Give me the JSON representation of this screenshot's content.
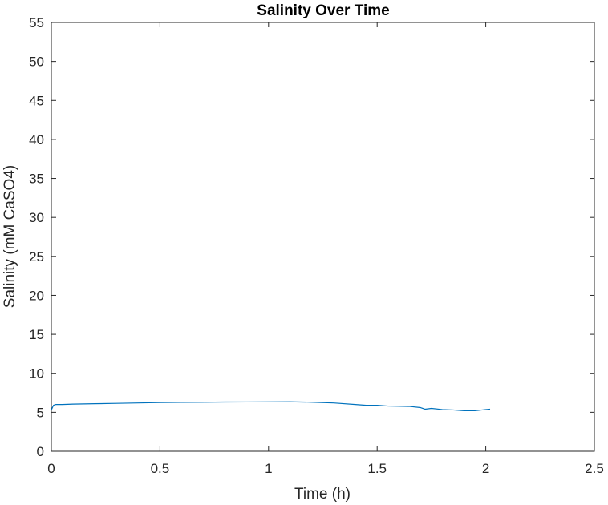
{
  "chart_data": {
    "type": "line",
    "title": "Salinity Over Time",
    "xlabel": "Time (h)",
    "ylabel": "Salinity (mM CaSO4)",
    "xlim": [
      0,
      2.5
    ],
    "ylim": [
      0,
      55
    ],
    "xticks": [
      0,
      0.5,
      1,
      1.5,
      2,
      2.5
    ],
    "xtick_labels": [
      "0",
      "0.5",
      "1",
      "1.5",
      "2",
      "2.5"
    ],
    "yticks": [
      0,
      5,
      10,
      15,
      20,
      25,
      30,
      35,
      40,
      45,
      50,
      55
    ],
    "ytick_labels": [
      "0",
      "5",
      "10",
      "15",
      "20",
      "25",
      "30",
      "35",
      "40",
      "45",
      "50",
      "55"
    ],
    "grid": false,
    "legend": "none",
    "series": [
      {
        "color": "#0072BD",
        "x": [
          0,
          0.01,
          0.02,
          0.05,
          0.1,
          0.2,
          0.3,
          0.4,
          0.5,
          0.6,
          0.7,
          0.8,
          0.9,
          1.0,
          1.1,
          1.2,
          1.3,
          1.4,
          1.45,
          1.5,
          1.55,
          1.6,
          1.65,
          1.7,
          1.72,
          1.75,
          1.8,
          1.85,
          1.9,
          1.95,
          2.0,
          2.02
        ],
        "y": [
          5.3,
          5.9,
          6.0,
          6.0,
          6.05,
          6.1,
          6.15,
          6.2,
          6.25,
          6.28,
          6.3,
          6.32,
          6.33,
          6.34,
          6.35,
          6.3,
          6.2,
          6.0,
          5.9,
          5.9,
          5.8,
          5.78,
          5.75,
          5.6,
          5.4,
          5.5,
          5.35,
          5.3,
          5.2,
          5.2,
          5.35,
          5.4
        ]
      }
    ]
  }
}
